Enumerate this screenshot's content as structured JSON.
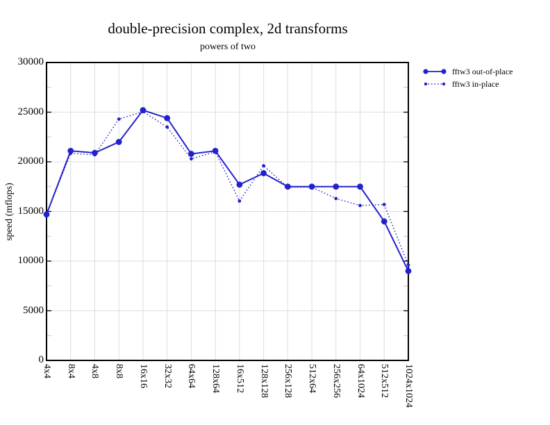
{
  "colors": {
    "series": "#2222cc",
    "grid": "#dcdcdc",
    "minor_tick": "#c4c4c4",
    "axis": "#000000",
    "background": "#ffffff"
  },
  "chart_data": {
    "type": "line",
    "title": "double-precision complex, 2d transforms",
    "subtitle": "powers of two",
    "xlabel": "",
    "ylabel": "speed (mflops)",
    "ylim": [
      0,
      30000
    ],
    "yticks": [
      0,
      5000,
      10000,
      15000,
      20000,
      25000,
      30000
    ],
    "minor_ytick_step": 2500,
    "grid": true,
    "legend_position": "top-right-outside",
    "categories": [
      "4x4",
      "8x4",
      "4x8",
      "8x8",
      "16x16",
      "32x32",
      "64x64",
      "128x64",
      "16x512",
      "128x128",
      "256x128",
      "512x64",
      "256x256",
      "64x1024",
      "512x512",
      "1024x1024"
    ],
    "series": [
      {
        "name": "fftw3 out-of-place",
        "line": "solid",
        "marker": "circle",
        "marker_radius": 4.4,
        "values": [
          14700,
          21100,
          20900,
          22000,
          25200,
          24400,
          20800,
          21100,
          17700,
          18850,
          17500,
          17500,
          17500,
          17500,
          14000,
          9000
        ]
      },
      {
        "name": "fftw3 in-place",
        "line": "dotted",
        "marker": "circle",
        "marker_radius": 2.4,
        "values": [
          14750,
          20850,
          20700,
          24300,
          25050,
          23500,
          20300,
          21000,
          16050,
          19600,
          17450,
          17450,
          16300,
          15600,
          15700,
          9600
        ]
      }
    ]
  }
}
